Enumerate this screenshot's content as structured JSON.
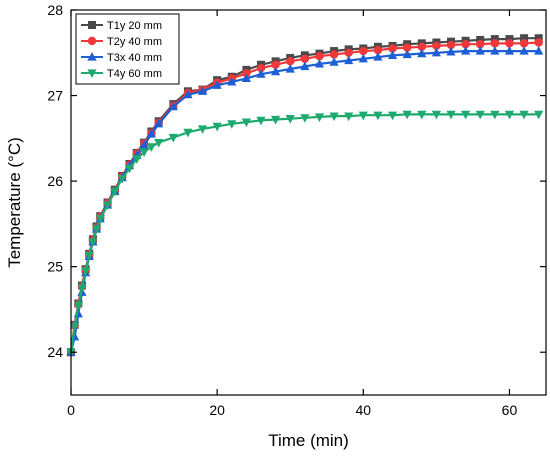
{
  "chart_data": {
    "type": "line",
    "title": "",
    "xlabel": "Time (min)",
    "ylabel": "Temperature (°C)",
    "xlim": [
      0,
      65
    ],
    "ylim": [
      23.5,
      28
    ],
    "xticks": [
      0,
      20,
      40,
      60
    ],
    "yticks": [
      24,
      25,
      26,
      27,
      28
    ],
    "grid": false,
    "legend_position": "top-left",
    "series": [
      {
        "name": "T1y 20 mm",
        "color": "#4a4a4a",
        "marker": "square",
        "x": [
          0,
          0.5,
          1,
          1.5,
          2,
          2.5,
          3,
          3.5,
          4,
          5,
          6,
          7,
          8,
          9,
          10,
          11,
          12,
          14,
          16,
          18,
          20,
          22,
          24,
          26,
          28,
          30,
          32,
          34,
          36,
          38,
          40,
          42,
          44,
          46,
          48,
          50,
          52,
          54,
          56,
          58,
          60,
          62,
          64
        ],
        "y": [
          24.0,
          24.32,
          24.57,
          24.78,
          24.97,
          25.15,
          25.32,
          25.47,
          25.59,
          25.75,
          25.9,
          26.06,
          26.2,
          26.33,
          26.45,
          26.58,
          26.7,
          26.9,
          27.05,
          27.07,
          27.18,
          27.22,
          27.3,
          27.36,
          27.4,
          27.44,
          27.47,
          27.49,
          27.52,
          27.54,
          27.55,
          27.57,
          27.58,
          27.6,
          27.61,
          27.62,
          27.63,
          27.64,
          27.65,
          27.66,
          27.66,
          27.67,
          27.67
        ]
      },
      {
        "name": "T2y 40 mm",
        "color": "#f0383a",
        "marker": "circle",
        "x": [
          0,
          0.5,
          1,
          1.5,
          2,
          2.5,
          3,
          3.5,
          4,
          5,
          6,
          7,
          8,
          9,
          10,
          11,
          12,
          14,
          16,
          18,
          20,
          22,
          24,
          26,
          28,
          30,
          32,
          34,
          36,
          38,
          40,
          42,
          44,
          46,
          48,
          50,
          52,
          54,
          56,
          58,
          60,
          62,
          64
        ],
        "y": [
          24.0,
          24.31,
          24.56,
          24.77,
          24.96,
          25.14,
          25.31,
          25.46,
          25.58,
          25.74,
          25.89,
          26.05,
          26.19,
          26.32,
          26.44,
          26.56,
          26.68,
          26.88,
          27.03,
          27.07,
          27.15,
          27.2,
          27.26,
          27.32,
          27.36,
          27.4,
          27.43,
          27.46,
          27.48,
          27.5,
          27.52,
          27.53,
          27.55,
          27.56,
          27.57,
          27.58,
          27.59,
          27.6,
          27.6,
          27.61,
          27.61,
          27.61,
          27.62
        ]
      },
      {
        "name": "T3x 40 mm",
        "color": "#1f5fd6",
        "marker": "triangle-up",
        "x": [
          0,
          0.5,
          1,
          1.5,
          2,
          2.5,
          3,
          3.5,
          4,
          5,
          6,
          7,
          8,
          9,
          10,
          11,
          12,
          14,
          16,
          18,
          20,
          22,
          24,
          26,
          28,
          30,
          32,
          34,
          36,
          38,
          40,
          42,
          44,
          46,
          48,
          50,
          52,
          54,
          56,
          58,
          60,
          62,
          64
        ],
        "y": [
          24.0,
          24.18,
          24.45,
          24.7,
          24.93,
          25.12,
          25.29,
          25.44,
          25.56,
          25.72,
          25.88,
          26.04,
          26.18,
          26.3,
          26.42,
          26.55,
          26.67,
          26.87,
          27.01,
          27.05,
          27.12,
          27.16,
          27.2,
          27.25,
          27.28,
          27.31,
          27.34,
          27.37,
          27.39,
          27.41,
          27.43,
          27.45,
          27.47,
          27.48,
          27.49,
          27.5,
          27.51,
          27.52,
          27.52,
          27.52,
          27.52,
          27.52,
          27.52
        ]
      },
      {
        "name": "T4y 60 mm",
        "color": "#1eaa6e",
        "marker": "triangle-down",
        "x": [
          0,
          0.5,
          1,
          1.5,
          2,
          2.5,
          3,
          3.5,
          4,
          5,
          6,
          7,
          8,
          9,
          10,
          11,
          12,
          14,
          16,
          18,
          20,
          22,
          24,
          26,
          28,
          30,
          32,
          34,
          36,
          38,
          40,
          42,
          44,
          46,
          48,
          50,
          52,
          54,
          56,
          58,
          60,
          62,
          64
        ],
        "y": [
          24.0,
          24.3,
          24.54,
          24.75,
          24.95,
          25.13,
          25.29,
          25.44,
          25.56,
          25.72,
          25.88,
          26.03,
          26.15,
          26.26,
          26.34,
          26.4,
          26.45,
          26.51,
          26.57,
          26.61,
          26.64,
          26.67,
          26.69,
          26.71,
          26.72,
          26.73,
          26.74,
          26.75,
          26.76,
          26.76,
          26.77,
          26.77,
          26.77,
          26.78,
          26.78,
          26.78,
          26.78,
          26.78,
          26.78,
          26.78,
          26.78,
          26.78,
          26.78
        ]
      }
    ]
  }
}
